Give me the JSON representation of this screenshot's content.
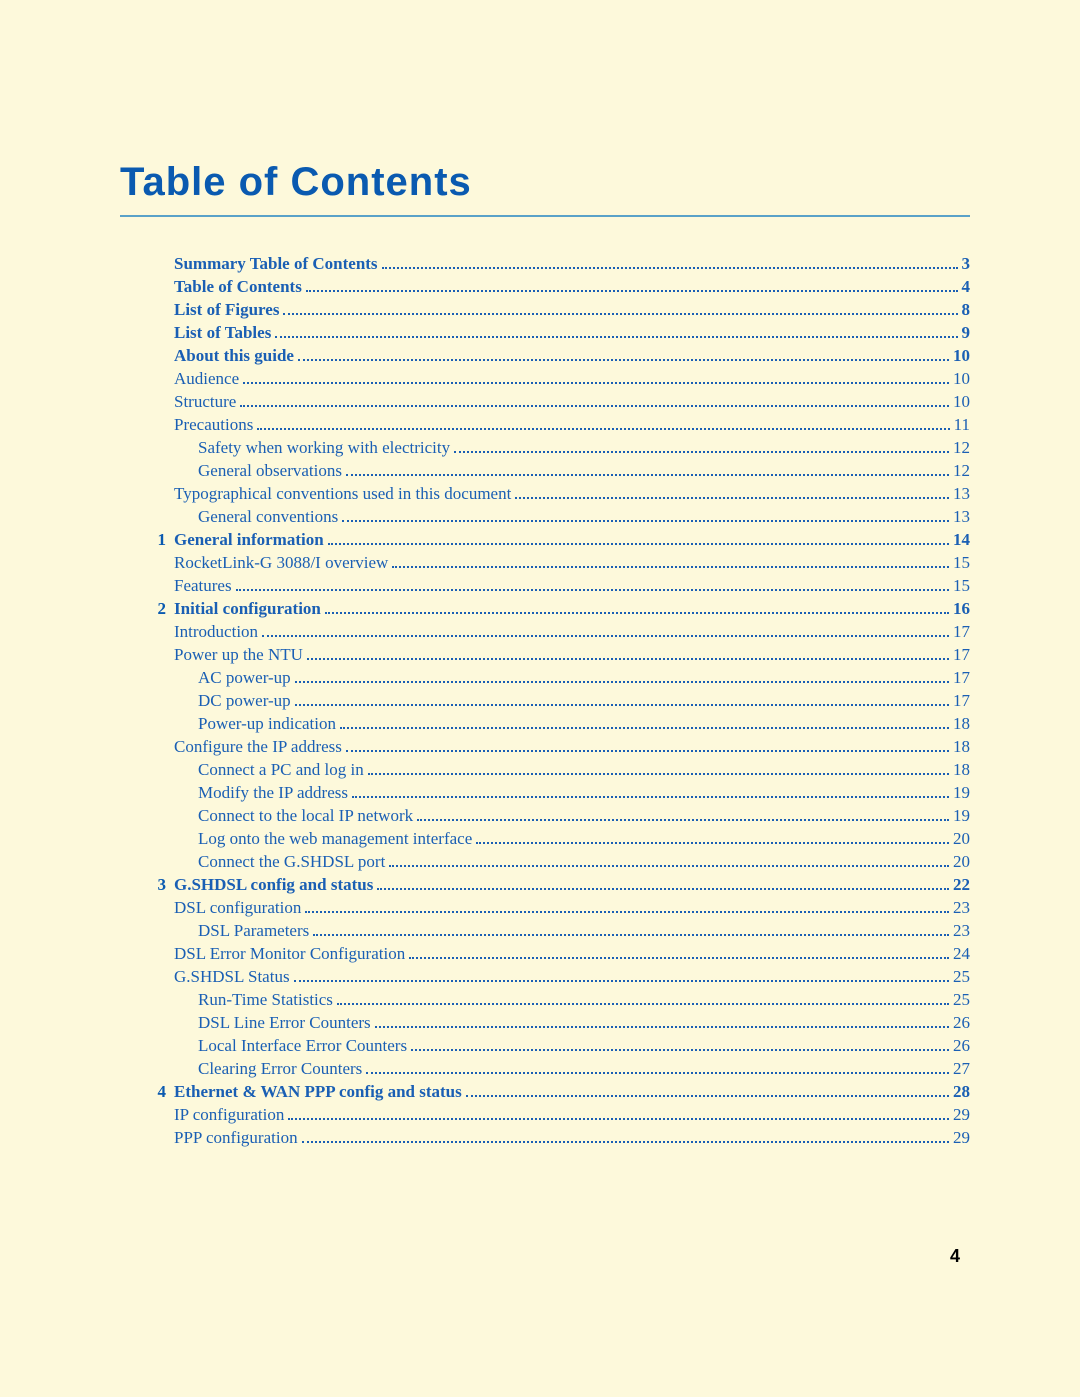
{
  "title": "Table of Contents",
  "page_number": "4",
  "colors": {
    "background": "#fdf9db",
    "link": "#1a5fb4",
    "rule": "#5aa2c8",
    "title": "#0a5ab0"
  },
  "fonts": {
    "title_size_pt": 30,
    "body_size_pt": 12
  },
  "entries": [
    {
      "chapter": "",
      "bold": true,
      "indent": 0,
      "title": "Summary Table of Contents ",
      "page": "3"
    },
    {
      "chapter": "",
      "bold": true,
      "indent": 0,
      "title": "Table of Contents ",
      "page": "4"
    },
    {
      "chapter": "",
      "bold": true,
      "indent": 0,
      "title": "List of Figures ",
      "page": "8"
    },
    {
      "chapter": "",
      "bold": true,
      "indent": 0,
      "title": "List of Tables ",
      "page": "9"
    },
    {
      "chapter": "",
      "bold": true,
      "indent": 0,
      "title": "About this guide ",
      "page": "10"
    },
    {
      "chapter": "",
      "bold": false,
      "indent": 0,
      "title": "Audience",
      "page": " 10"
    },
    {
      "chapter": "",
      "bold": false,
      "indent": 0,
      "title": "Structure",
      "page": " 10"
    },
    {
      "chapter": "",
      "bold": false,
      "indent": 0,
      "title": "Precautions ",
      "page": " 11"
    },
    {
      "chapter": "",
      "bold": false,
      "indent": 1,
      "title": "Safety when working with electricity ",
      "page": "12"
    },
    {
      "chapter": "",
      "bold": false,
      "indent": 1,
      "title": "General observations ",
      "page": "12"
    },
    {
      "chapter": "",
      "bold": false,
      "indent": 0,
      "title": "Typographical conventions used in this document",
      "page": " 13"
    },
    {
      "chapter": "",
      "bold": false,
      "indent": 1,
      "title": "General conventions ",
      "page": "13"
    },
    {
      "chapter": "1",
      "bold": true,
      "indent": 0,
      "title": "General information",
      "page": " 14"
    },
    {
      "chapter": "",
      "bold": false,
      "indent": 0,
      "title": "RocketLink-G 3088/I overview ",
      "page": "15"
    },
    {
      "chapter": "",
      "bold": false,
      "indent": 0,
      "title": "Features ",
      "page": "15"
    },
    {
      "chapter": "2",
      "bold": true,
      "indent": 0,
      "title": "Initial configuration",
      "page": " 16"
    },
    {
      "chapter": "",
      "bold": false,
      "indent": 0,
      "title": "Introduction",
      "page": "17"
    },
    {
      "chapter": "",
      "bold": false,
      "indent": 0,
      "title": "Power up the NTU ",
      "page": "17"
    },
    {
      "chapter": "",
      "bold": false,
      "indent": 1,
      "title": "AC power-up ",
      "page": "17"
    },
    {
      "chapter": "",
      "bold": false,
      "indent": 1,
      "title": "DC power-up ",
      "page": "17"
    },
    {
      "chapter": "",
      "bold": false,
      "indent": 1,
      "title": "Power-up indication ",
      "page": "18"
    },
    {
      "chapter": "",
      "bold": false,
      "indent": 0,
      "title": "Configure the IP address",
      "page": "18"
    },
    {
      "chapter": "",
      "bold": false,
      "indent": 1,
      "title": "Connect a PC and log in ",
      "page": "18"
    },
    {
      "chapter": "",
      "bold": false,
      "indent": 1,
      "title": "Modify the IP address ",
      "page": "19"
    },
    {
      "chapter": "",
      "bold": false,
      "indent": 1,
      "title": "Connect to the local IP network ",
      "page": "19"
    },
    {
      "chapter": "",
      "bold": false,
      "indent": 1,
      "title": "Log onto the web management interface ",
      "page": "20"
    },
    {
      "chapter": "",
      "bold": false,
      "indent": 1,
      "title": "Connect the G.SHDSL port ",
      "page": "20"
    },
    {
      "chapter": "3",
      "bold": true,
      "indent": 0,
      "title": "G.SHDSL config and status ",
      "page": " 22"
    },
    {
      "chapter": "",
      "bold": false,
      "indent": 0,
      "title": "DSL configuration",
      "page": "23"
    },
    {
      "chapter": "",
      "bold": false,
      "indent": 1,
      "title": "DSL Parameters ",
      "page": "23"
    },
    {
      "chapter": "",
      "bold": false,
      "indent": 0,
      "title": "DSL Error Monitor Configuration ",
      "page": "24"
    },
    {
      "chapter": "",
      "bold": false,
      "indent": 0,
      "title": "G.SHDSL Status ",
      "page": "25"
    },
    {
      "chapter": "",
      "bold": false,
      "indent": 1,
      "title": "Run-Time Statistics ",
      "page": "25"
    },
    {
      "chapter": "",
      "bold": false,
      "indent": 1,
      "title": "DSL Line Error Counters ",
      "page": "26"
    },
    {
      "chapter": "",
      "bold": false,
      "indent": 1,
      "title": "Local Interface Error Counters ",
      "page": "26"
    },
    {
      "chapter": "",
      "bold": false,
      "indent": 1,
      "title": "Clearing Error Counters ",
      "page": "27"
    },
    {
      "chapter": "4",
      "bold": true,
      "indent": 0,
      "title": "Ethernet & WAN PPP config and status",
      "page": " 28"
    },
    {
      "chapter": "",
      "bold": false,
      "indent": 0,
      "title": "IP configuration ",
      "page": "29"
    },
    {
      "chapter": "",
      "bold": false,
      "indent": 0,
      "title": "PPP configuration ",
      "page": "29"
    }
  ]
}
